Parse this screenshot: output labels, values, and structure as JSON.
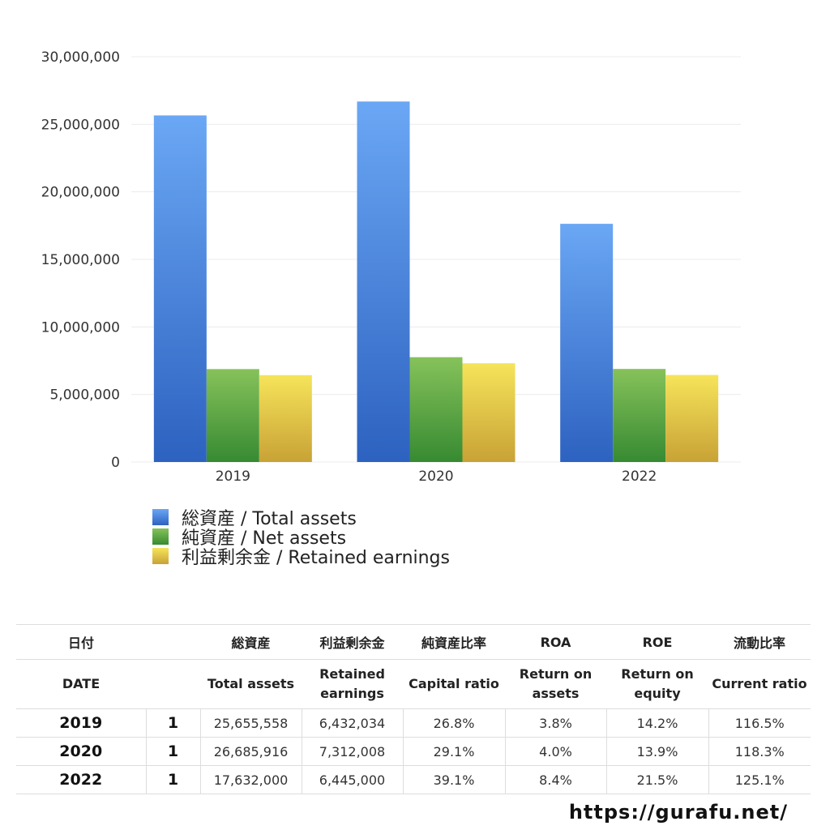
{
  "chart_data": {
    "type": "bar",
    "categories": [
      "2019",
      "2020",
      "2022"
    ],
    "series": [
      {
        "name": "総資産 / Total assets",
        "values": [
          25655558,
          26685916,
          17632000
        ]
      },
      {
        "name": "純資産 / Net assets",
        "values": [
          6880000,
          7760000,
          6890000
        ]
      },
      {
        "name": "利益剰余金 / Retained earnings",
        "values": [
          6432034,
          7312008,
          6445000
        ]
      }
    ],
    "ylim": [
      0,
      30000000
    ],
    "yticks": [
      "30,000,000",
      "25,000,000",
      "20,000,000",
      "15,000,000",
      "10,000,000",
      "5,000,000",
      "0"
    ],
    "ytick_values": [
      30000000,
      25000000,
      20000000,
      15000000,
      10000000,
      5000000,
      0
    ],
    "grid": true,
    "legend_position": "bottom-left",
    "colors": {
      "total_assets": [
        "#6aa7f4",
        "#2d62c0"
      ],
      "net_assets": [
        "#86c25a",
        "#378a32"
      ],
      "retained_earnings": [
        "#f6e45a",
        "#c8a236"
      ]
    }
  },
  "table": {
    "header_jp": [
      "日付",
      "",
      "総資産",
      "利益剰余金",
      "純資産比率",
      "ROA",
      "ROE",
      "流動比率"
    ],
    "header_en": [
      "DATE",
      "",
      "Total assets",
      "Retained earnings",
      "Capital ratio",
      "Return on assets",
      "Return on equity",
      "Current ratio"
    ],
    "rows": [
      [
        "2019",
        "1",
        "25,655,558",
        "6,432,034",
        "26.8%",
        "3.8%",
        "14.2%",
        "116.5%"
      ],
      [
        "2020",
        "1",
        "26,685,916",
        "7,312,008",
        "29.1%",
        "4.0%",
        "13.9%",
        "118.3%"
      ],
      [
        "2022",
        "1",
        "17,632,000",
        "6,445,000",
        "39.1%",
        "8.4%",
        "21.5%",
        "125.1%"
      ]
    ]
  },
  "footer": {
    "url": "https://gurafu.net/"
  }
}
